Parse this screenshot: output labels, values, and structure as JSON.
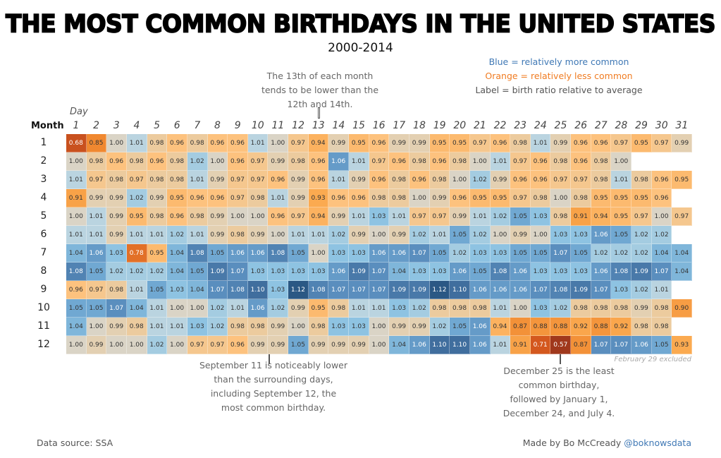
{
  "title": "THE MOST COMMON BIRTHDAYS IN THE UNITED STATES",
  "subtitle": "2000-2014",
  "legend": {
    "blue": "Blue = relatively more common",
    "orange": "Orange = relatively less common",
    "label": "Label = birth ratio relative to average",
    "blue_color": "#3f78b5",
    "orange_color": "#f07c22"
  },
  "annotations": {
    "thirteenth": [
      "The 13th of each month",
      "tends to be lower than the",
      "12th and 14th."
    ],
    "sept11": [
      "September 11 is noticeably lower",
      "than the surrounding days,",
      "including September 12, the",
      "most common birthday."
    ],
    "dec25": [
      "December 25 is the least",
      "common birthday,",
      "followed by January 1,",
      "December 24, and July 4."
    ]
  },
  "note": "February 29 excluded",
  "footer": {
    "source": "Data source: SSA",
    "made_by": "Made by Bo McCready",
    "handle": "@boknowsdata"
  },
  "chart_data": {
    "type": "heatmap",
    "xlabel": "Day",
    "ylabel": "Month",
    "x": [
      1,
      2,
      3,
      4,
      5,
      6,
      7,
      8,
      9,
      10,
      11,
      12,
      13,
      14,
      15,
      16,
      17,
      18,
      19,
      20,
      21,
      22,
      23,
      24,
      25,
      26,
      27,
      28,
      29,
      30,
      31
    ],
    "y": [
      1,
      2,
      3,
      4,
      5,
      6,
      7,
      8,
      9,
      10,
      11,
      12
    ],
    "values": [
      [
        0.68,
        0.85,
        1.0,
        1.01,
        0.98,
        0.96,
        0.98,
        0.96,
        0.96,
        1.01,
        1.0,
        0.97,
        0.94,
        0.99,
        0.95,
        0.96,
        0.99,
        0.99,
        0.95,
        0.95,
        0.97,
        0.96,
        0.98,
        1.01,
        0.99,
        0.96,
        0.96,
        0.97,
        0.95,
        0.97,
        0.99
      ],
      [
        1.0,
        0.98,
        0.96,
        0.98,
        0.96,
        0.98,
        1.02,
        1.0,
        0.96,
        0.97,
        0.99,
        0.98,
        0.96,
        1.06,
        1.01,
        0.97,
        0.96,
        0.98,
        0.96,
        0.98,
        1.0,
        1.01,
        0.97,
        0.96,
        0.98,
        0.96,
        0.98,
        1.0
      ],
      [
        1.01,
        0.97,
        0.98,
        0.97,
        0.98,
        0.98,
        1.01,
        0.99,
        0.97,
        0.97,
        0.96,
        0.99,
        0.96,
        1.01,
        0.99,
        0.96,
        0.98,
        0.96,
        0.98,
        1.0,
        1.02,
        0.99,
        0.96,
        0.96,
        0.97,
        0.97,
        0.98,
        1.01,
        0.98,
        0.96,
        0.95
      ],
      [
        0.91,
        0.99,
        0.99,
        1.02,
        0.99,
        0.95,
        0.96,
        0.96,
        0.97,
        0.98,
        1.01,
        0.99,
        0.93,
        0.96,
        0.96,
        0.98,
        0.98,
        1.0,
        0.99,
        0.96,
        0.95,
        0.95,
        0.97,
        0.98,
        1.0,
        0.98,
        0.95,
        0.95,
        0.95,
        0.96
      ],
      [
        1.0,
        1.01,
        0.99,
        0.95,
        0.98,
        0.96,
        0.98,
        0.99,
        1.0,
        1.0,
        0.96,
        0.97,
        0.94,
        0.99,
        1.01,
        1.03,
        1.01,
        0.97,
        0.97,
        0.99,
        1.01,
        1.02,
        1.05,
        1.03,
        0.98,
        0.91,
        0.94,
        0.95,
        0.97,
        1.0,
        0.97
      ],
      [
        1.01,
        1.01,
        0.99,
        1.01,
        1.01,
        1.02,
        1.01,
        0.99,
        0.98,
        0.99,
        1.0,
        1.01,
        1.01,
        1.02,
        0.99,
        1.0,
        0.99,
        1.02,
        1.01,
        1.05,
        1.02,
        1.0,
        0.99,
        1.0,
        1.03,
        1.03,
        1.06,
        1.05,
        1.02,
        1.02
      ],
      [
        1.04,
        1.06,
        1.03,
        0.78,
        0.95,
        1.04,
        1.08,
        1.05,
        1.06,
        1.06,
        1.08,
        1.05,
        1.0,
        1.03,
        1.03,
        1.06,
        1.06,
        1.07,
        1.05,
        1.02,
        1.03,
        1.03,
        1.05,
        1.05,
        1.07,
        1.05,
        1.02,
        1.02,
        1.02,
        1.04,
        1.04
      ],
      [
        1.08,
        1.05,
        1.02,
        1.02,
        1.02,
        1.04,
        1.05,
        1.09,
        1.07,
        1.03,
        1.03,
        1.03,
        1.03,
        1.06,
        1.09,
        1.07,
        1.04,
        1.03,
        1.03,
        1.06,
        1.05,
        1.08,
        1.06,
        1.03,
        1.03,
        1.03,
        1.06,
        1.08,
        1.09,
        1.07,
        1.04
      ],
      [
        0.96,
        0.97,
        0.98,
        1.01,
        1.05,
        1.03,
        1.04,
        1.07,
        1.08,
        1.1,
        1.03,
        1.12,
        1.08,
        1.07,
        1.07,
        1.07,
        1.09,
        1.09,
        1.12,
        1.1,
        1.06,
        1.06,
        1.06,
        1.07,
        1.08,
        1.09,
        1.07,
        1.03,
        1.02,
        1.01
      ],
      [
        1.05,
        1.05,
        1.07,
        1.04,
        1.01,
        1.0,
        1.0,
        1.02,
        1.01,
        1.06,
        1.02,
        0.99,
        0.95,
        0.98,
        1.01,
        1.01,
        1.03,
        1.02,
        0.98,
        0.98,
        0.98,
        1.01,
        1.0,
        1.03,
        1.02,
        0.98,
        0.98,
        0.98,
        0.99,
        0.98,
        0.9
      ],
      [
        1.04,
        1.0,
        0.99,
        0.98,
        1.01,
        1.01,
        1.03,
        1.02,
        0.98,
        0.98,
        0.99,
        1.0,
        0.98,
        1.03,
        1.03,
        1.0,
        0.99,
        0.99,
        1.02,
        1.05,
        1.06,
        0.94,
        0.87,
        0.88,
        0.88,
        0.92,
        0.88,
        0.92,
        0.98,
        0.98
      ],
      [
        1.0,
        0.99,
        1.0,
        1.0,
        1.02,
        1.0,
        0.97,
        0.97,
        0.96,
        0.99,
        0.99,
        1.05,
        0.99,
        0.99,
        0.99,
        1.0,
        1.04,
        1.06,
        1.1,
        1.1,
        1.06,
        1.01,
        0.91,
        0.71,
        0.57,
        0.87,
        1.07,
        1.07,
        1.06,
        1.05,
        0.93
      ]
    ]
  }
}
